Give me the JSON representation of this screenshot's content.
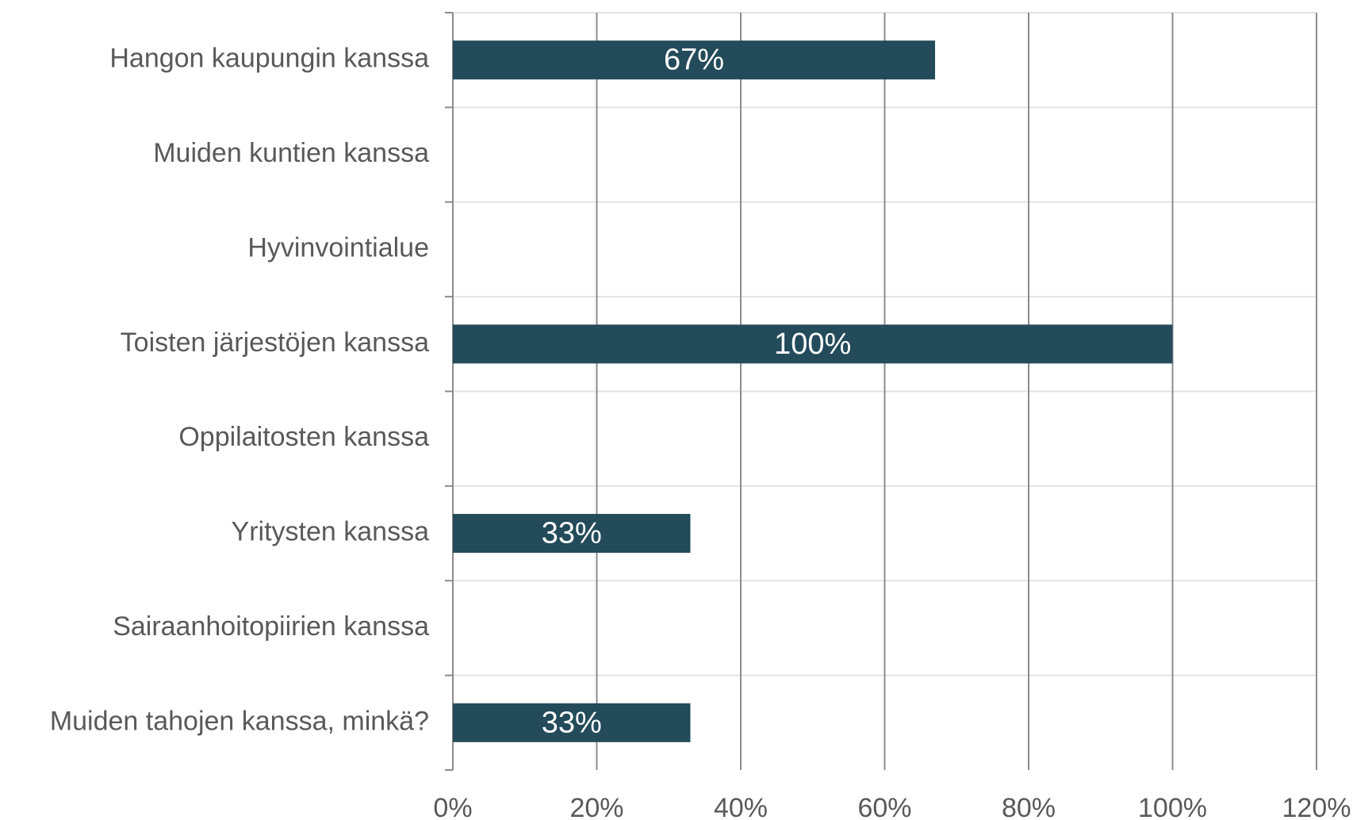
{
  "chart_data": {
    "type": "bar",
    "orientation": "horizontal",
    "categories": [
      "Hangon kaupungin kanssa",
      "Muiden kuntien kanssa",
      "Hyvinvointialue",
      "Toisten järjestöjen kanssa",
      "Oppilaitosten kanssa",
      "Yritysten kanssa",
      "Sairaanhoitopiirien kanssa",
      "Muiden tahojen kanssa, minkä?"
    ],
    "values": [
      67,
      null,
      null,
      100,
      null,
      33,
      null,
      33
    ],
    "value_labels": [
      "67%",
      null,
      null,
      "100%",
      null,
      "33%",
      null,
      "33%"
    ],
    "color": "#234b5a",
    "xlim": [
      0,
      120
    ],
    "xticks": [
      {
        "value": 0,
        "label": "0%"
      },
      {
        "value": 20,
        "label": "20%"
      },
      {
        "value": 40,
        "label": "40%"
      },
      {
        "value": 60,
        "label": "60%"
      },
      {
        "value": 80,
        "label": "80%"
      },
      {
        "value": 100,
        "label": "100%"
      },
      {
        "value": 120,
        "label": "120%"
      }
    ],
    "grid": true
  }
}
